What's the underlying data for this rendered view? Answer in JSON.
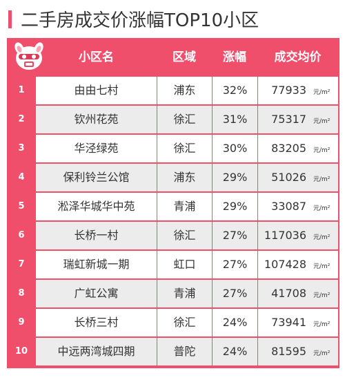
{
  "title": "二手房成交价涨幅TOP10小区",
  "colors": {
    "accent": "#ef4f6b",
    "row_alt": "#ececec"
  },
  "table": {
    "headers": {
      "name": "小区名",
      "area": "区域",
      "rate": "涨幅",
      "price": "成交均价"
    },
    "unit": "元/m²",
    "rows": [
      {
        "rank": "1",
        "name": "由由七村",
        "area": "浦东",
        "rate": "32%",
        "price": "77933"
      },
      {
        "rank": "2",
        "name": "钦州花苑",
        "area": "徐汇",
        "rate": "31%",
        "price": "75317"
      },
      {
        "rank": "3",
        "name": "华泾绿苑",
        "area": "徐汇",
        "rate": "30%",
        "price": "83205"
      },
      {
        "rank": "4",
        "name": "保利铃兰公馆",
        "area": "浦东",
        "rate": "29%",
        "price": "51026"
      },
      {
        "rank": "5",
        "name": "淞泽华城华中苑",
        "area": "青浦",
        "rate": "29%",
        "price": "33087"
      },
      {
        "rank": "6",
        "name": "长桥一村",
        "area": "徐汇",
        "rate": "27%",
        "price": "117036"
      },
      {
        "rank": "7",
        "name": "瑞虹新城一期",
        "area": "虹口",
        "rate": "27%",
        "price": "107428"
      },
      {
        "rank": "8",
        "name": "广虹公寓",
        "area": "青浦",
        "rate": "27%",
        "price": "41708"
      },
      {
        "rank": "9",
        "name": "长桥三村",
        "area": "徐汇",
        "rate": "24%",
        "price": "73941"
      },
      {
        "rank": "10",
        "name": "中远两湾城四期",
        "area": "普陀",
        "rate": "24%",
        "price": "81595"
      }
    ]
  }
}
